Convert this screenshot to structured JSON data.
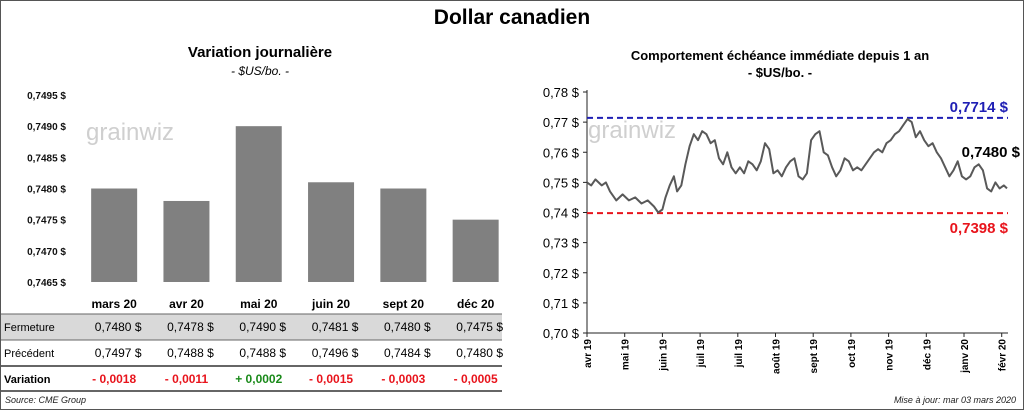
{
  "page": {
    "title": "Dollar canadien",
    "source": "Source: CME Group",
    "updated": "Mise à jour: mar 03 mars 2020",
    "watermark": "grainwiz"
  },
  "left_panel": {
    "title": "Variation  journalière",
    "subtitle": "- $US/bo. -"
  },
  "right_panel": {
    "title": "Comportement échéance immédiate depuis 1 an",
    "subtitle": "- $US/bo. -"
  },
  "table": {
    "rows": [
      {
        "label": "Fermeture",
        "values": [
          "0,7480  $",
          "0,7478  $",
          "0,7490  $",
          "0,7481  $",
          "0,7480  $",
          "0,7475  $"
        ],
        "shaded": true
      },
      {
        "label": "Précédent",
        "values": [
          "0,7497  $",
          "0,7488  $",
          "0,7488  $",
          "0,7496  $",
          "0,7484  $",
          "0,7480  $"
        ],
        "shaded": false
      }
    ],
    "variation_label": "Variation",
    "variations": [
      "- 0,0018",
      "- 0,0011",
      "+ 0,0002",
      "- 0,0015",
      "- 0,0003",
      "- 0,0005"
    ],
    "variation_colors": [
      "#e8141c",
      "#e8141c",
      "#1a8a1a",
      "#e8141c",
      "#e8141c",
      "#e8141c"
    ]
  },
  "colors": {
    "bar": "#808080",
    "line": "#595959",
    "high_line": "#1f1fb4",
    "low_line": "#e8141c",
    "table_shade": "#d9d9d9"
  },
  "chart_data": [
    {
      "type": "bar",
      "title": "Variation  journalière",
      "subtitle": "- $US/bo. -",
      "categories": [
        "mars 20",
        "avr 20",
        "mai 20",
        "juin 20",
        "sept 20",
        "déc 20"
      ],
      "values": [
        0.748,
        0.7478,
        0.749,
        0.7481,
        0.748,
        0.7475
      ],
      "ylim": [
        0.7465,
        0.7495
      ],
      "yticks": [
        0.7465,
        0.747,
        0.7475,
        0.748,
        0.7485,
        0.749,
        0.7495
      ],
      "ytick_labels": [
        "0,7465 $",
        "0,7470 $",
        "0,7475 $",
        "0,7480 $",
        "0,7485 $",
        "0,7490 $",
        "0,7495 $"
      ],
      "grid": false
    },
    {
      "type": "line",
      "title": "Comportement échéance immédiate depuis 1 an",
      "subtitle": "- $US/bo. -",
      "ylim": [
        0.7,
        0.78
      ],
      "yticks": [
        0.7,
        0.71,
        0.72,
        0.73,
        0.74,
        0.75,
        0.76,
        0.77,
        0.78
      ],
      "ytick_labels": [
        "0,70 $",
        "0,71 $",
        "0,72 $",
        "0,73 $",
        "0,74 $",
        "0,75 $",
        "0,76 $",
        "0,77 $",
        "0,78 $"
      ],
      "xtick_labels": [
        "avr 19",
        "mai 19",
        "juin 19",
        "juil 19",
        "juil 19",
        "août 19",
        "sept 19",
        "oct 19",
        "nov 19",
        "déc 19",
        "janv 20",
        "févr 20"
      ],
      "xtick_days": [
        0,
        36,
        72,
        108,
        144,
        180,
        216,
        252,
        288,
        324,
        360,
        396
      ],
      "x_days_span": 402,
      "series": [
        {
          "x": [
            0,
            4,
            8,
            14,
            18,
            22,
            28,
            34,
            40,
            46,
            52,
            58,
            64,
            68,
            72,
            75,
            79,
            83,
            86,
            90,
            94,
            98,
            102,
            106,
            110,
            114,
            118,
            122,
            126,
            130,
            134,
            138,
            142,
            146,
            150,
            154,
            158,
            162,
            166,
            170,
            174,
            178,
            182,
            186,
            190,
            194,
            198,
            202,
            206,
            210,
            214,
            218,
            222,
            226,
            230,
            234,
            238,
            242,
            246,
            250,
            254,
            258,
            262,
            266,
            270,
            274,
            278,
            282,
            286,
            290,
            294,
            298,
            302,
            306,
            310,
            314,
            318,
            322,
            326,
            330,
            334,
            338,
            342,
            346,
            350,
            354,
            358,
            362,
            366,
            370,
            374,
            378,
            382,
            386,
            390,
            394,
            398,
            401
          ],
          "values": [
            0.75,
            0.749,
            0.751,
            0.749,
            0.75,
            0.747,
            0.744,
            0.746,
            0.744,
            0.745,
            0.743,
            0.744,
            0.742,
            0.74,
            0.741,
            0.745,
            0.749,
            0.752,
            0.747,
            0.749,
            0.756,
            0.762,
            0.766,
            0.764,
            0.767,
            0.766,
            0.763,
            0.764,
            0.758,
            0.756,
            0.76,
            0.755,
            0.753,
            0.755,
            0.753,
            0.757,
            0.756,
            0.754,
            0.757,
            0.763,
            0.761,
            0.753,
            0.754,
            0.752,
            0.755,
            0.757,
            0.758,
            0.752,
            0.751,
            0.753,
            0.764,
            0.766,
            0.767,
            0.76,
            0.759,
            0.755,
            0.752,
            0.754,
            0.758,
            0.757,
            0.754,
            0.755,
            0.754,
            0.756,
            0.758,
            0.76,
            0.761,
            0.76,
            0.763,
            0.764,
            0.766,
            0.767,
            0.769,
            0.771,
            0.77,
            0.765,
            0.767,
            0.764,
            0.762,
            0.763,
            0.76,
            0.758,
            0.755,
            0.752,
            0.754,
            0.757,
            0.752,
            0.751,
            0.752,
            0.755,
            0.756,
            0.754,
            0.748,
            0.747,
            0.75,
            0.748,
            0.749,
            0.748
          ]
        }
      ],
      "reference_lines": [
        {
          "value": 0.7714,
          "label": "0,7714  $",
          "style": "dashed",
          "color": "#1f1fb4"
        },
        {
          "value": 0.7398,
          "label": "0,7398  $",
          "style": "dashed",
          "color": "#e8141c"
        }
      ],
      "last_value_label": "0,7480 $",
      "grid": false
    }
  ]
}
